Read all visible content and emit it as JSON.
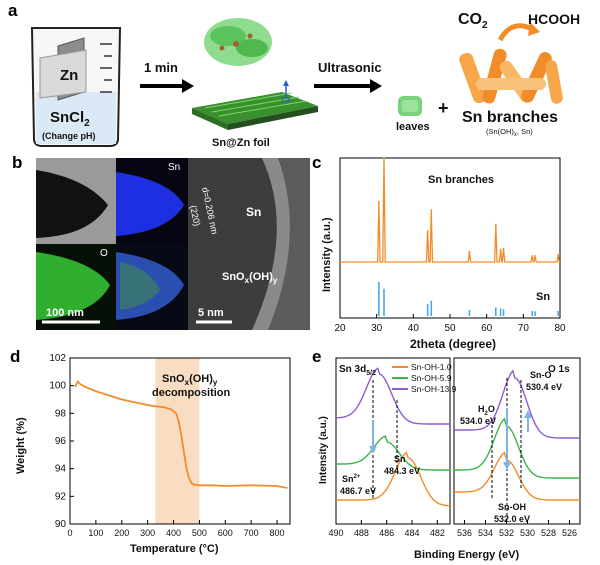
{
  "panel_labels": {
    "a": "a",
    "b": "b",
    "c": "c",
    "d": "d",
    "e": "e"
  },
  "panel_a": {
    "beaker_metal": "Zn",
    "beaker_solution": "SnCl",
    "beaker_solution_sub": "2",
    "beaker_note": "(Change pH)",
    "time_label": "1 min",
    "foil_label": "Sn@Zn foil",
    "process_label": "Ultrasonic",
    "leaves_label": "leaves",
    "plus": "+",
    "branches_label": "Sn branches",
    "branches_sub": "(Sn(OH)",
    "branches_sub2": "x",
    "branches_sub3": ", Sn)",
    "reactant": "CO",
    "reactant_sub": "2",
    "product": "HCOOH"
  },
  "panel_b": {
    "map_sn": "Sn",
    "map_o": "O",
    "scale_left": "100 nm",
    "hr_sn": "Sn",
    "d_spacing": "d=0.206 nm",
    "plane": "(220)",
    "shell": "SnO",
    "shell_x": "x",
    "shell_oh": "(OH)",
    "shell_y": "y",
    "scale_right": "5 nm",
    "colors": {
      "sn_map": "#1d2fe0",
      "o_map": "#2fae2f"
    }
  },
  "chart_data": [
    {
      "type": "line",
      "panel": "c",
      "xlabel": "2theta (degree)",
      "ylabel": "Intensity (a.u.)",
      "xlim": [
        20,
        80
      ],
      "xticks": [
        20,
        30,
        40,
        50,
        60,
        70,
        80
      ],
      "series": [
        {
          "name": "Sn branches",
          "color": "#f28c28",
          "peaks": [
            [
              30.6,
              0.58
            ],
            [
              32.0,
              1.0
            ],
            [
              43.9,
              0.3
            ],
            [
              44.9,
              0.5
            ],
            [
              55.3,
              0.1
            ],
            [
              62.5,
              0.36
            ],
            [
              63.8,
              0.12
            ],
            [
              64.6,
              0.13
            ],
            [
              72.4,
              0.06
            ],
            [
              73.2,
              0.06
            ],
            [
              79.5,
              0.07
            ]
          ]
        },
        {
          "name": "Sn",
          "color": "#4aa6e8",
          "sticks": [
            [
              30.6,
              1.0
            ],
            [
              32.0,
              0.8
            ],
            [
              43.9,
              0.35
            ],
            [
              44.9,
              0.45
            ],
            [
              55.3,
              0.18
            ],
            [
              62.5,
              0.25
            ],
            [
              63.8,
              0.22
            ],
            [
              64.6,
              0.2
            ],
            [
              72.4,
              0.15
            ],
            [
              73.2,
              0.14
            ],
            [
              79.5,
              0.15
            ]
          ]
        }
      ]
    },
    {
      "type": "line",
      "panel": "d",
      "xlabel": "Temperature (°C)",
      "ylabel": "Weight (%)",
      "xlim": [
        0,
        850
      ],
      "ylim": [
        90,
        102
      ],
      "xticks": [
        0,
        100,
        200,
        300,
        400,
        500,
        600,
        700,
        800
      ],
      "yticks": [
        90,
        92,
        94,
        96,
        98,
        100,
        102
      ],
      "band": {
        "from": 330,
        "to": 500,
        "color": "#f9ddc2"
      },
      "annotation": {
        "main": "SnO",
        "x_sub": "x",
        "mid": "(OH)",
        "y_sub": "y",
        "line2": "decomposition"
      },
      "series": [
        {
          "name": "",
          "color": "#f28c28",
          "x": [
            20,
            30,
            40,
            60,
            100,
            150,
            200,
            250,
            300,
            330,
            360,
            390,
            410,
            420,
            430,
            440,
            450,
            460,
            470,
            480,
            500,
            550,
            600,
            700,
            800,
            840
          ],
          "y": [
            99.9,
            100.3,
            100.1,
            99.9,
            99.6,
            99.3,
            99.0,
            98.8,
            98.6,
            98.5,
            98.45,
            98.3,
            98.0,
            97.4,
            96.4,
            95.2,
            94.0,
            93.3,
            92.95,
            92.85,
            92.8,
            92.8,
            92.75,
            92.8,
            92.75,
            92.6
          ]
        }
      ]
    },
    {
      "type": "line",
      "panel": "e",
      "xlabel": "Binding Energy (eV)",
      "ylabel": "Intensity (a.u.)",
      "left_title": "Sn 3d",
      "left_title_sub": "5/2",
      "right_title": "O 1s",
      "left_xlim": [
        490,
        481
      ],
      "right_xlim": [
        537,
        525
      ],
      "left_xticks": [
        490,
        488,
        486,
        484,
        482
      ],
      "right_xticks": [
        536,
        534,
        532,
        530,
        528,
        526
      ],
      "legend": [
        "Sn-OH-1.0",
        "Sn-OH-5.9",
        "Sn-OH-13.9"
      ],
      "colors": [
        "#f28c28",
        "#3cb44b",
        "#8e5bd1"
      ],
      "annotations": {
        "sn2": "Sn",
        "sn2_sup": "2+",
        "sn2_val": "486.7 eV",
        "sn": "Sn",
        "sn_val": "484.3 eV",
        "h2o": "H",
        "h2o_sub": "2",
        "h2o_o": "O",
        "h2o_val": "534.0 eV",
        "sno": "Sn-O",
        "sno_val": "530.4 eV",
        "snoh": "Sn-OH",
        "snoh_val": "532.0 eV"
      }
    }
  ]
}
